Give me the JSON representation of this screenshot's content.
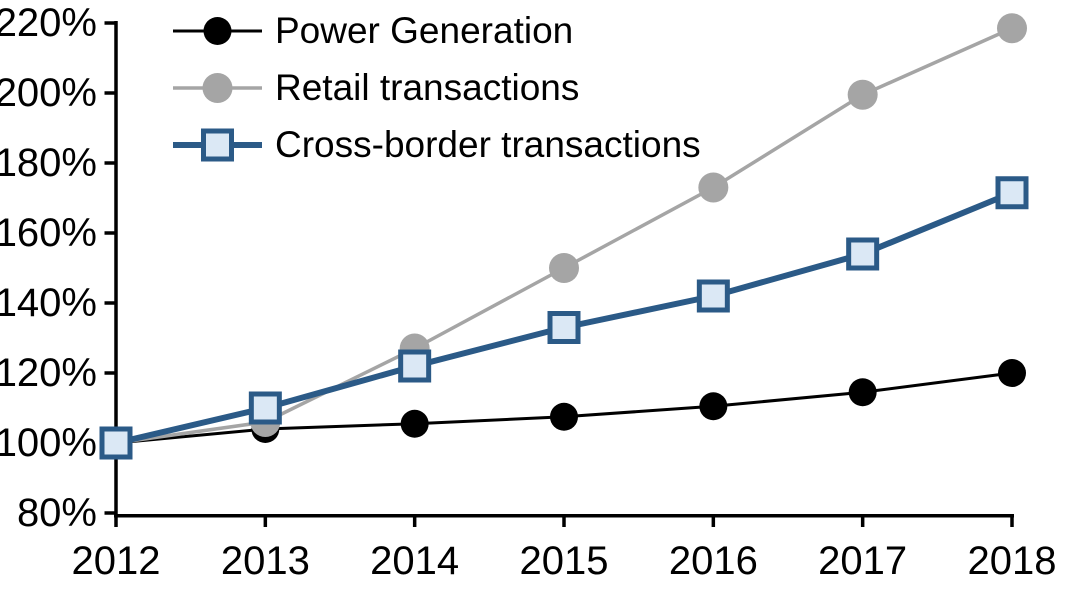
{
  "chart_data": {
    "type": "line",
    "x_labels": [
      "2012",
      "2013",
      "2014",
      "2015",
      "2016",
      "2017",
      "2018"
    ],
    "y_tick_labels": [
      "220%",
      "200%",
      "180%",
      "160%",
      "140%",
      "120%",
      "100%",
      "80%"
    ],
    "ylim": [
      80,
      220
    ],
    "y_tick_step": 20,
    "grid": false,
    "legend_position": "top-left inside plot area",
    "axis_color": "#000000",
    "background": "#ffffff",
    "series": [
      {
        "name": "Power Generation",
        "color": "#000000",
        "line_width": 3,
        "marker": "circle",
        "marker_fill": "#000000",
        "marker_radius": 14,
        "values": [
          100,
          104,
          105.5,
          107.5,
          110.5,
          114.5,
          120
        ]
      },
      {
        "name": "Retail transactions",
        "color": "#a5a5a5",
        "line_width": 3.5,
        "marker": "circle",
        "marker_fill": "#a5a5a5",
        "marker_radius": 15,
        "values": [
          100,
          106,
          127,
          150,
          173,
          199.5,
          218.5
        ]
      },
      {
        "name": "Cross-border transactions",
        "color": "#2b5a87",
        "line_width": 6,
        "marker": "square",
        "marker_fill": "#dbe8f5",
        "marker_size": 28,
        "marker_stroke_width": 5,
        "values": [
          100,
          110,
          122,
          133,
          142,
          154,
          171.5
        ]
      }
    ]
  }
}
